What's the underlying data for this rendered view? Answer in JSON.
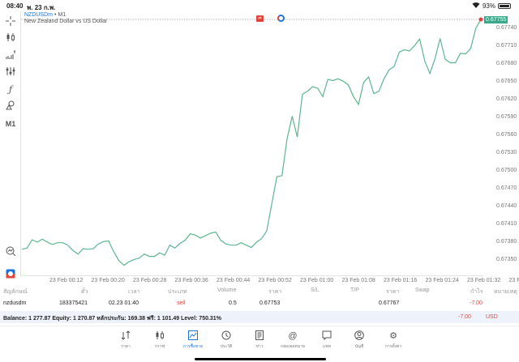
{
  "status_bar": {
    "time": "08:40",
    "date": "พ. 23 ก.พ.",
    "battery": "93%"
  },
  "chart_header": {
    "symbol": "NZDUSDm",
    "separator": "•",
    "timeframe": "M1",
    "description": "New Zealand Dollar vs US Dollar"
  },
  "left_toolbar": {
    "items": [
      {
        "name": "crosshair-icon",
        "glyph": "⊹"
      },
      {
        "name": "candlestick-icon",
        "glyph": "┇"
      },
      {
        "name": "indicators-icon",
        "glyph": "▟"
      },
      {
        "name": "settings-sliders-icon",
        "glyph": "⫶"
      },
      {
        "name": "function-icon",
        "glyph": "ƒ"
      },
      {
        "name": "objects-icon",
        "glyph": "⌂"
      },
      {
        "name": "timeframe-button",
        "glyph": "M1"
      },
      {
        "name": "zoom-chart-icon",
        "glyph": "⌕"
      },
      {
        "name": "one-click-trading-icon",
        "glyph": "⇅"
      }
    ]
  },
  "current_price": "0.67755",
  "colors": {
    "line": "#5db592",
    "accent": "#1e73d8",
    "sell": "#e0443b",
    "price_tag": "#3aa88a",
    "balance_bg": "#eef2fb"
  },
  "chart_data": {
    "type": "line",
    "title": "NZDUSDm • M1",
    "subtitle": "New Zealand Dollar vs US Dollar",
    "xlabel": "",
    "ylabel": "",
    "x_ticks": [
      "23 Feb 00:12",
      "23 Feb 00:20",
      "23 Feb 00:28",
      "23 Feb 00:36",
      "23 Feb 00:44",
      "23 Feb 00:52",
      "23 Feb 01:00",
      "23 Feb 01:08",
      "23 Feb 01:16",
      "23 Feb 01:24",
      "23 Feb 01:32",
      "23 Feb 01:40"
    ],
    "y_ticks": [
      "0.67740",
      "0.67710",
      "0.67680",
      "0.67650",
      "0.67620",
      "0.67590",
      "0.67560",
      "0.67530",
      "0.67500",
      "0.67470",
      "0.67440",
      "0.67410",
      "0.67380",
      "0.67350"
    ],
    "ylim": [
      0.6734,
      0.67755
    ],
    "grid": false,
    "legend": "none",
    "last_price": 0.67755,
    "values": [
      0.67368,
      0.6737,
      0.67384,
      0.6738,
      0.67385,
      0.6738,
      0.67376,
      0.67379,
      0.67379,
      0.67375,
      0.67366,
      0.6736,
      0.67369,
      0.67368,
      0.67369,
      0.67377,
      0.67381,
      0.67382,
      0.67364,
      0.67349,
      0.67341,
      0.67347,
      0.67351,
      0.67353,
      0.6736,
      0.67356,
      0.67356,
      0.67362,
      0.67358,
      0.67375,
      0.6737,
      0.67378,
      0.67383,
      0.67394,
      0.67392,
      0.67387,
      0.67391,
      0.67395,
      0.67397,
      0.67383,
      0.67377,
      0.67375,
      0.67375,
      0.67379,
      0.67375,
      0.67371,
      0.6738,
      0.67386,
      0.67399,
      0.67445,
      0.6749,
      0.67492,
      0.67554,
      0.67592,
      0.67557,
      0.67629,
      0.67634,
      0.67642,
      0.67639,
      0.67625,
      0.67654,
      0.67652,
      0.67655,
      0.67651,
      0.67645,
      0.67625,
      0.67612,
      0.67649,
      0.67658,
      0.6763,
      0.67634,
      0.67655,
      0.6767,
      0.67676,
      0.677,
      0.67704,
      0.67702,
      0.67711,
      0.67722,
      0.67685,
      0.67664,
      0.67689,
      0.67723,
      0.67688,
      0.67682,
      0.67682,
      0.67698,
      0.67697,
      0.67706,
      0.6774,
      0.67755
    ]
  },
  "table": {
    "headers": [
      "สัญลักษณ์",
      "ตั๋ว",
      "เวลา",
      "ประเภท",
      "Volume",
      "ราคา",
      "S/L",
      "T/P",
      "ราคา",
      "Swap",
      "กำไร",
      "หมายเหตุ"
    ],
    "rows": [
      {
        "symbol": "nzdusdm",
        "ticket": "183375421",
        "time": "02.23 01:40",
        "type": "sell",
        "volume": "0.5",
        "open_price": "0.67753",
        "sl": "",
        "tp": "",
        "current_price": "0.67767",
        "swap": "",
        "profit": "-7.00",
        "comment": ""
      }
    ]
  },
  "balance_bar": {
    "text": "Balance: 1 277.87 Equity: 1 270.87 หลักประกัน: 169.38 ฟรี: 1 101.49 Level: 750.31%",
    "profit": "-7.00",
    "currency": "USD"
  },
  "bottom_nav": {
    "items": [
      {
        "label": "ราคา",
        "glyph": "⇅",
        "active": false
      },
      {
        "label": "กราฟ",
        "glyph": "┇",
        "active": false
      },
      {
        "label": "การซื้อขาย",
        "glyph": "📈",
        "active": true
      },
      {
        "label": "ประวัติ",
        "glyph": "◷",
        "active": false
      },
      {
        "label": "ข่าว",
        "glyph": "☰",
        "active": false
      },
      {
        "label": "กล่องจดหมาย",
        "glyph": "@",
        "active": false
      },
      {
        "label": "แชท",
        "glyph": "▢",
        "active": false
      },
      {
        "label": "บัญชี",
        "glyph": "◉",
        "active": false
      },
      {
        "label": "การตั้งค่า",
        "glyph": "⚙",
        "active": false
      }
    ]
  }
}
